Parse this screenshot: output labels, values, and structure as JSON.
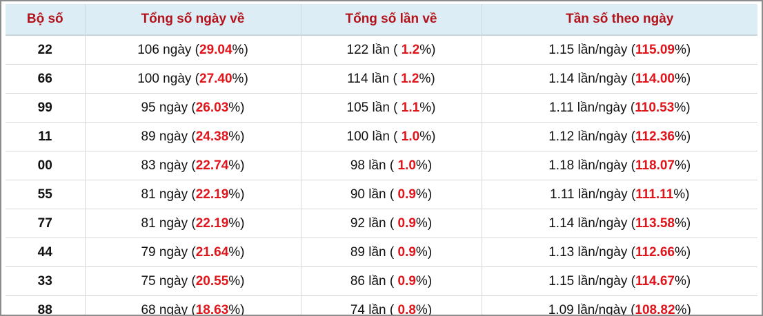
{
  "table": {
    "header": [
      "Bộ số",
      "Tổng số ngày về",
      "Tổng số lần về",
      "Tần số theo ngày"
    ],
    "rows": [
      [
        "22",
        [
          "106 ngày (",
          "29.04",
          "%)"
        ],
        [
          "122 lần ( ",
          "1.2",
          "%)"
        ],
        [
          "1.15 lần/ngày (",
          "115.09",
          "%)"
        ]
      ],
      [
        "66",
        [
          "100 ngày (",
          "27.40",
          "%)"
        ],
        [
          "114 lần ( ",
          "1.2",
          "%)"
        ],
        [
          "1.14 lần/ngày (",
          "114.00",
          "%)"
        ]
      ],
      [
        "99",
        [
          "95 ngày (",
          "26.03",
          "%)"
        ],
        [
          "105 lần ( ",
          "1.1",
          "%)"
        ],
        [
          "1.11 lần/ngày (",
          "110.53",
          "%)"
        ]
      ],
      [
        "11",
        [
          "89 ngày (",
          "24.38",
          "%)"
        ],
        [
          "100 lần ( ",
          "1.0",
          "%)"
        ],
        [
          "1.12 lần/ngày (",
          "112.36",
          "%)"
        ]
      ],
      [
        "00",
        [
          "83 ngày (",
          "22.74",
          "%)"
        ],
        [
          "98 lần ( ",
          "1.0",
          "%)"
        ],
        [
          "1.18 lần/ngày (",
          "118.07",
          "%)"
        ]
      ],
      [
        "55",
        [
          "81 ngày (",
          "22.19",
          "%)"
        ],
        [
          "90 lần ( ",
          "0.9",
          "%)"
        ],
        [
          "1.11 lần/ngày (",
          "111.11",
          "%)"
        ]
      ],
      [
        "77",
        [
          "81 ngày (",
          "22.19",
          "%)"
        ],
        [
          "92 lần ( ",
          "0.9",
          "%)"
        ],
        [
          "1.14 lần/ngày (",
          "113.58",
          "%)"
        ]
      ],
      [
        "44",
        [
          "79 ngày (",
          "21.64",
          "%)"
        ],
        [
          "89 lần ( ",
          "0.9",
          "%)"
        ],
        [
          "1.13 lần/ngày (",
          "112.66",
          "%)"
        ]
      ],
      [
        "33",
        [
          "75 ngày (",
          "20.55",
          "%)"
        ],
        [
          "86 lần ( ",
          "0.9",
          "%)"
        ],
        [
          "1.15 lần/ngày (",
          "114.67",
          "%)"
        ]
      ],
      [
        "88",
        [
          "68 ngày (",
          "18.63",
          "%)"
        ],
        [
          "74 lần ( ",
          "0.8",
          "%)"
        ],
        [
          "1.09 lần/ngày (",
          "108.82",
          "%)"
        ]
      ]
    ]
  }
}
